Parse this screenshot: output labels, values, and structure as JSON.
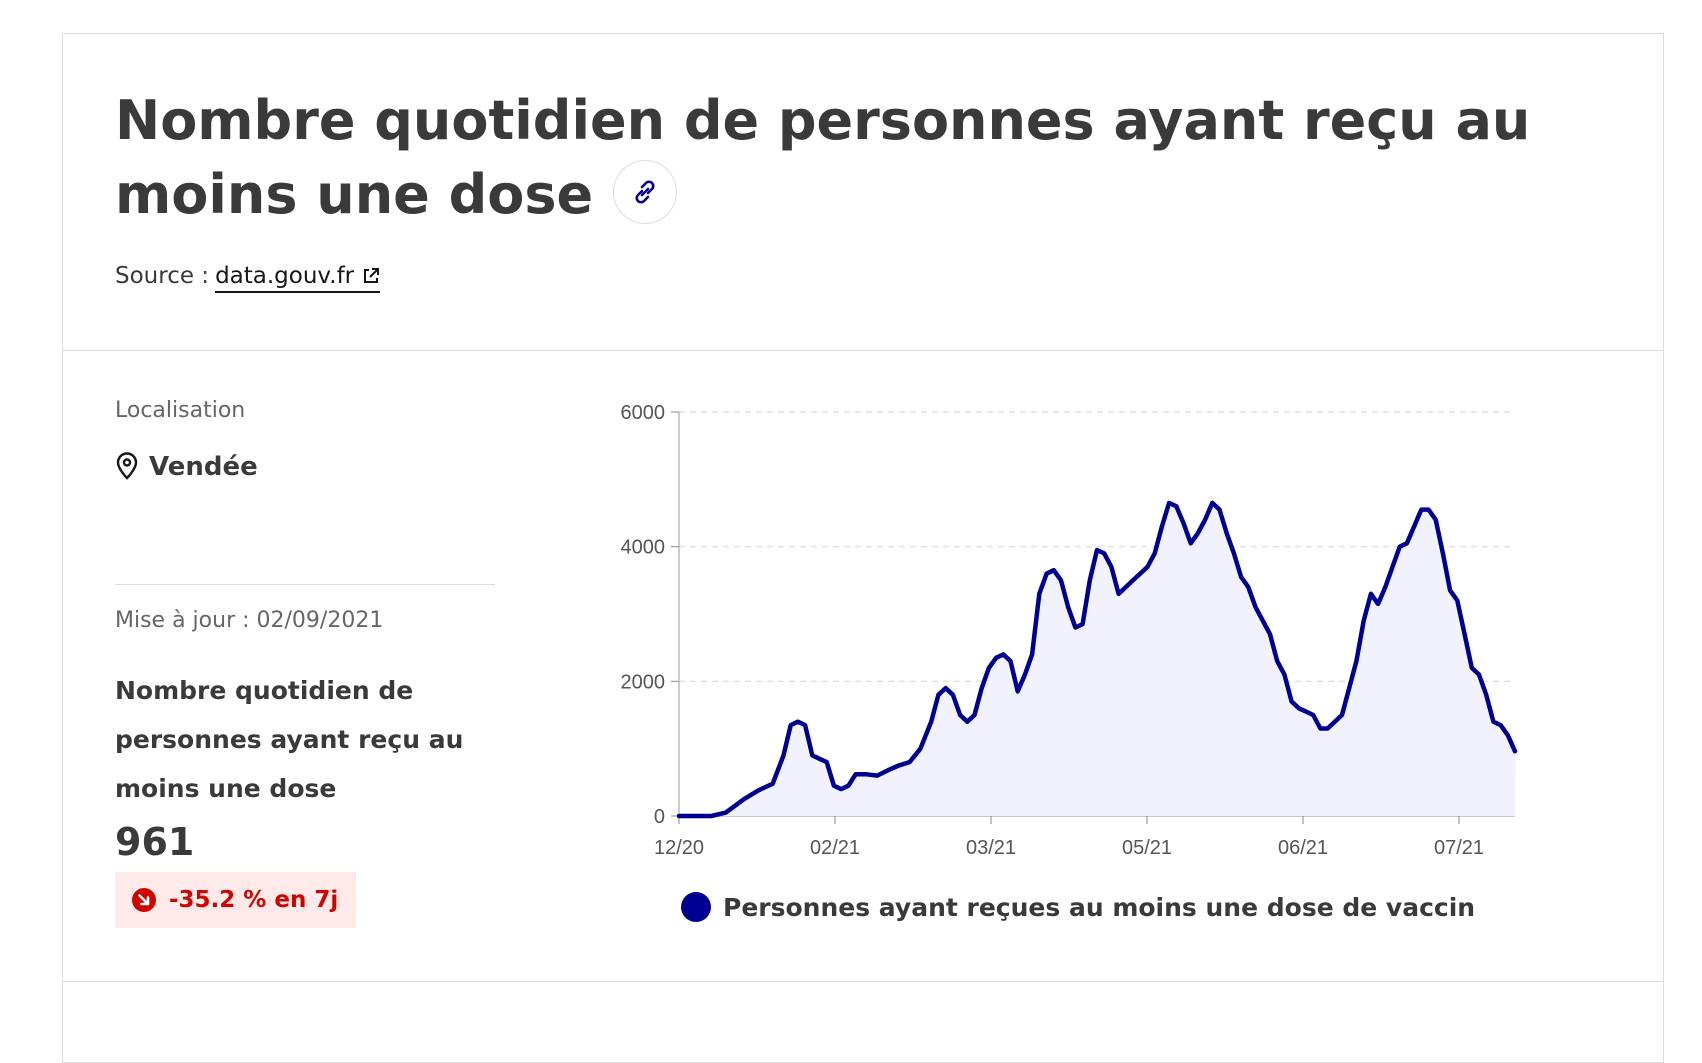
{
  "header": {
    "title": "Nombre quotidien de personnes ayant reçu au moins une dose",
    "source_label": "Source :",
    "source_link": "data.gouv.fr"
  },
  "sidebar": {
    "localisation_label": "Localisation",
    "localisation_value": "Vendée",
    "update_text": "Mise à jour : 02/09/2021",
    "indicator_name": "Nombre quotidien de personnes ayant reçu au moins une dose",
    "value": "961",
    "evolution": "-35.2 % en 7j"
  },
  "colors": {
    "line": "#000091",
    "area": "#f2f2ff",
    "badge_bg": "#ffe9e9",
    "badge_text": "#ce0500"
  },
  "chart_data": {
    "type": "area",
    "xlabel": "",
    "ylabel": "",
    "x_ticks": [
      "12/20",
      "02/21",
      "03/21",
      "05/21",
      "06/21",
      "07/21"
    ],
    "y_ticks": [
      0,
      2000,
      4000,
      6000
    ],
    "ylim": [
      0,
      6000
    ],
    "grid": true,
    "legend_position": "bottom",
    "series": [
      {
        "name": "Personnes ayant reçues au moins une dose de vaccin",
        "points": [
          [
            0,
            0
          ],
          [
            9,
            0
          ],
          [
            13,
            50
          ],
          [
            18,
            250
          ],
          [
            22,
            380
          ],
          [
            26,
            480
          ],
          [
            29,
            900
          ],
          [
            31,
            1350
          ],
          [
            33,
            1400
          ],
          [
            35,
            1350
          ],
          [
            37,
            900
          ],
          [
            39,
            850
          ],
          [
            41,
            800
          ],
          [
            43,
            450
          ],
          [
            45,
            400
          ],
          [
            47,
            450
          ],
          [
            49,
            620
          ],
          [
            52,
            620
          ],
          [
            55,
            600
          ],
          [
            58,
            680
          ],
          [
            61,
            750
          ],
          [
            64,
            800
          ],
          [
            67,
            1000
          ],
          [
            70,
            1400
          ],
          [
            72,
            1800
          ],
          [
            74,
            1900
          ],
          [
            76,
            1800
          ],
          [
            78,
            1500
          ],
          [
            80,
            1400
          ],
          [
            82,
            1500
          ],
          [
            84,
            1900
          ],
          [
            86,
            2200
          ],
          [
            88,
            2350
          ],
          [
            90,
            2400
          ],
          [
            92,
            2300
          ],
          [
            94,
            1850
          ],
          [
            96,
            2100
          ],
          [
            98,
            2400
          ],
          [
            100,
            3300
          ],
          [
            102,
            3600
          ],
          [
            104,
            3650
          ],
          [
            106,
            3500
          ],
          [
            108,
            3100
          ],
          [
            110,
            2800
          ],
          [
            112,
            2850
          ],
          [
            114,
            3500
          ],
          [
            116,
            3950
          ],
          [
            118,
            3900
          ],
          [
            120,
            3700
          ],
          [
            122,
            3300
          ],
          [
            124,
            3400
          ],
          [
            126,
            3500
          ],
          [
            128,
            3600
          ],
          [
            130,
            3700
          ],
          [
            132,
            3900
          ],
          [
            134,
            4300
          ],
          [
            136,
            4650
          ],
          [
            138,
            4600
          ],
          [
            140,
            4350
          ],
          [
            142,
            4050
          ],
          [
            144,
            4200
          ],
          [
            146,
            4400
          ],
          [
            148,
            4650
          ],
          [
            150,
            4550
          ],
          [
            152,
            4200
          ],
          [
            154,
            3900
          ],
          [
            156,
            3550
          ],
          [
            158,
            3400
          ],
          [
            160,
            3100
          ],
          [
            162,
            2900
          ],
          [
            164,
            2700
          ],
          [
            166,
            2300
          ],
          [
            168,
            2100
          ],
          [
            170,
            1700
          ],
          [
            172,
            1600
          ],
          [
            174,
            1550
          ],
          [
            176,
            1500
          ],
          [
            178,
            1300
          ],
          [
            180,
            1300
          ],
          [
            182,
            1400
          ],
          [
            184,
            1500
          ],
          [
            186,
            1900
          ],
          [
            188,
            2300
          ],
          [
            190,
            2900
          ],
          [
            192,
            3300
          ],
          [
            194,
            3150
          ],
          [
            196,
            3400
          ],
          [
            198,
            3700
          ],
          [
            200,
            4000
          ],
          [
            202,
            4050
          ],
          [
            204,
            4300
          ],
          [
            206,
            4550
          ],
          [
            208,
            4550
          ],
          [
            210,
            4400
          ],
          [
            212,
            3900
          ],
          [
            214,
            3350
          ],
          [
            216,
            3200
          ],
          [
            218,
            2700
          ],
          [
            220,
            2200
          ],
          [
            222,
            2100
          ],
          [
            224,
            1800
          ],
          [
            226,
            1400
          ],
          [
            228,
            1350
          ],
          [
            230,
            1200
          ],
          [
            232,
            961
          ]
        ]
      }
    ]
  }
}
